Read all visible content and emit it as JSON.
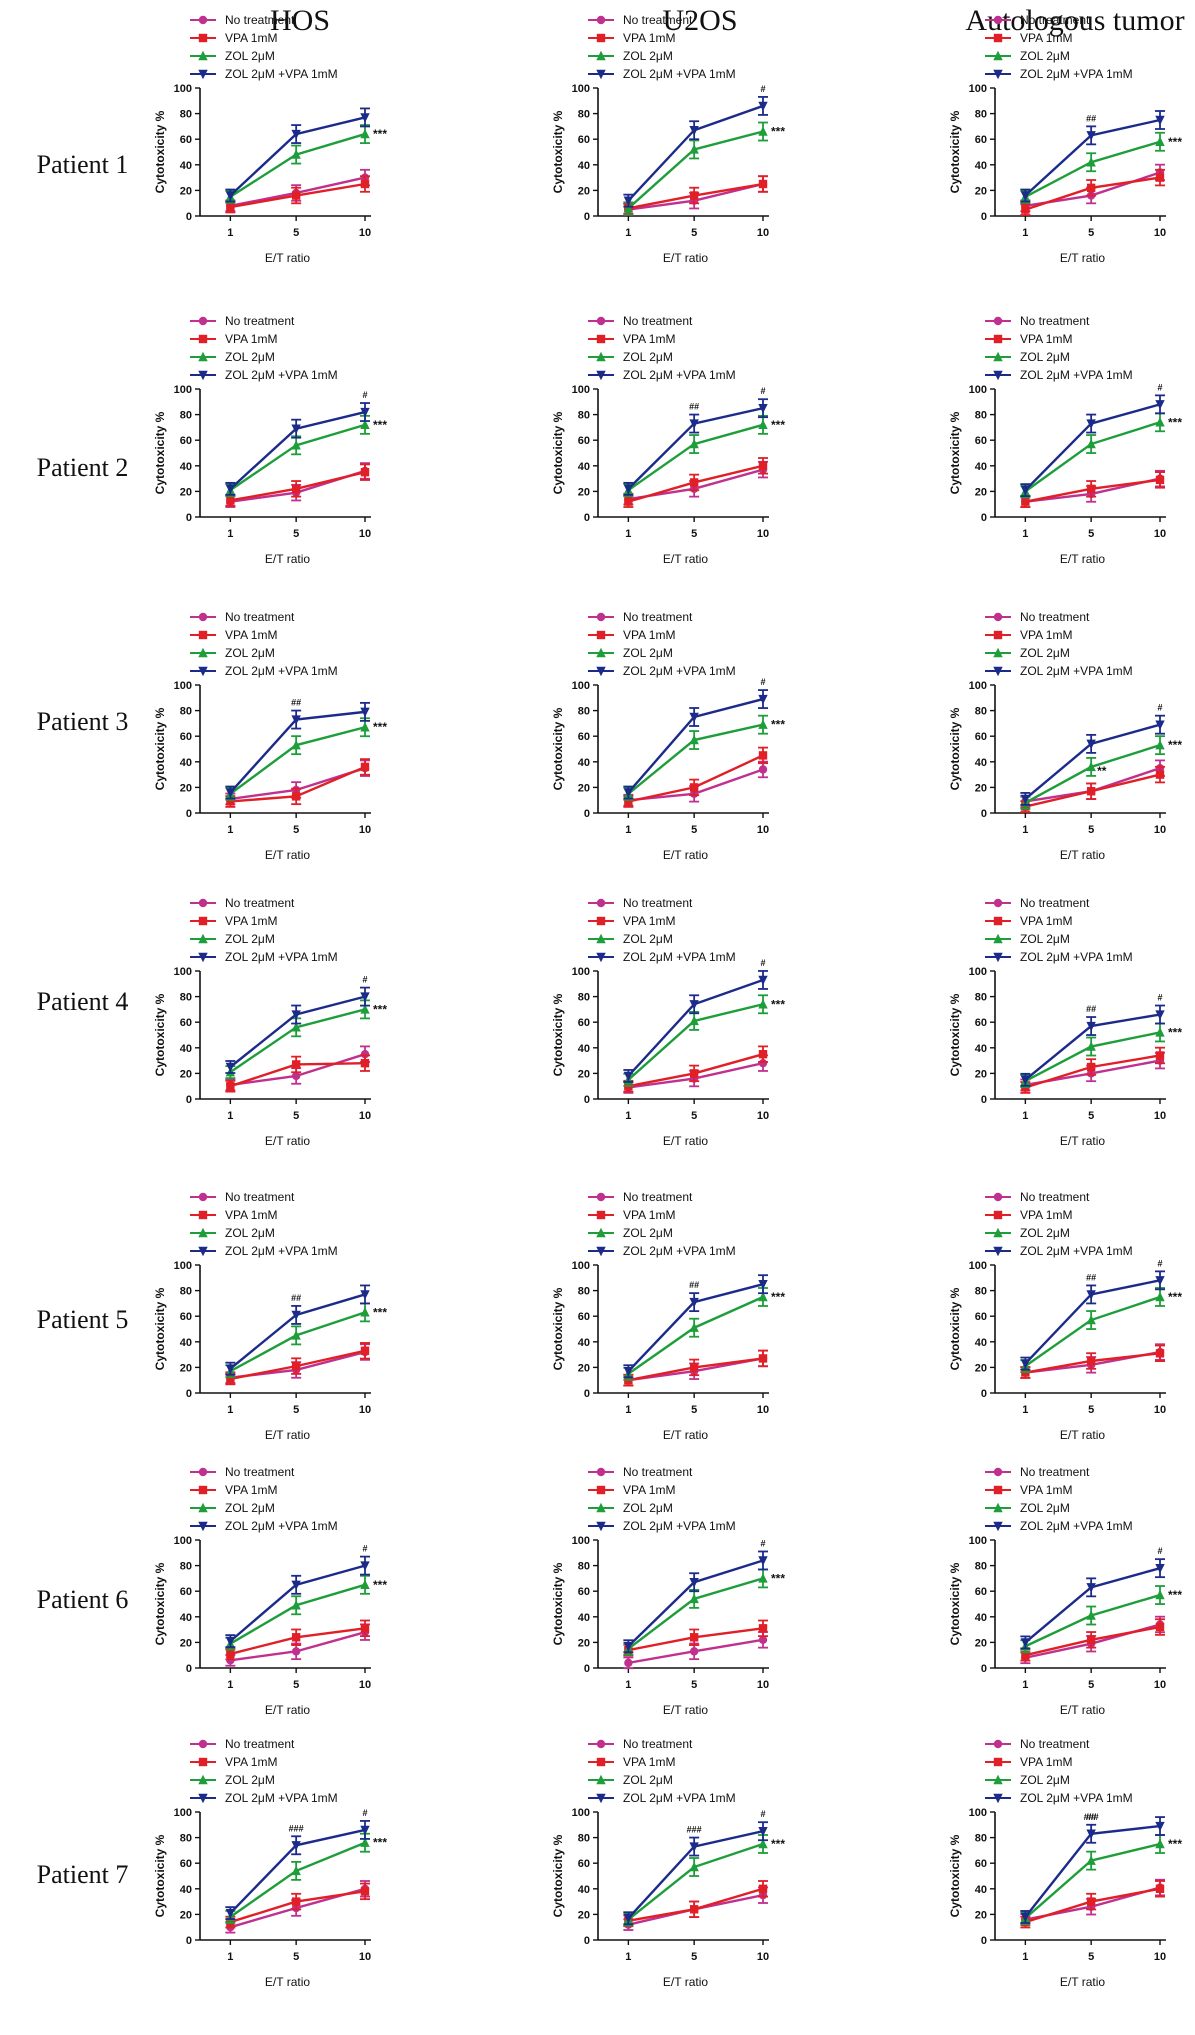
{
  "columns": [
    "HOS",
    "U2OS",
    "Autologous tumor"
  ],
  "rows": [
    "Patient 1",
    "Patient 2",
    "Patient 3",
    "Patient 4",
    "Patient 5",
    "Patient 6",
    "Patient 7"
  ],
  "axis": {
    "xlabel": "E/T ratio",
    "ylabel": "Cytotoxicity %",
    "xticks": [
      "1",
      "5",
      "10"
    ],
    "yticks": [
      "0",
      "20",
      "40",
      "60",
      "80",
      "100"
    ],
    "ylim": [
      0,
      100
    ]
  },
  "legend": [
    "No treatment",
    "VPA 1mM",
    "ZOL 2μM",
    "ZOL 2μM +VPA 1mM"
  ],
  "colors": {
    "no_treatment": "#c0308e",
    "vpa": "#e01f26",
    "zol": "#1e9e3a",
    "combo": "#1c2b8a",
    "axis": "#111111"
  },
  "chart_data": [
    {
      "type": "line",
      "title": "HOS – Patient 1",
      "x": [
        1,
        5,
        10
      ],
      "series": [
        {
          "name": "No treatment",
          "values": [
            8,
            18,
            30
          ]
        },
        {
          "name": "VPA 1mM",
          "values": [
            7,
            16,
            25
          ]
        },
        {
          "name": "ZOL 2μM",
          "values": [
            15,
            48,
            64
          ]
        },
        {
          "name": "ZOL 2μM +VPA 1mM",
          "values": [
            16,
            64,
            77
          ]
        }
      ],
      "annotations": [
        "***"
      ]
    },
    {
      "type": "line",
      "title": "U2OS – Patient 1",
      "x": [
        1,
        5,
        10
      ],
      "series": [
        {
          "name": "No treatment",
          "values": [
            5,
            12,
            25
          ]
        },
        {
          "name": "VPA 1mM",
          "values": [
            6,
            16,
            25
          ]
        },
        {
          "name": "ZOL 2μM",
          "values": [
            6,
            52,
            66
          ]
        },
        {
          "name": "ZOL 2μM +VPA 1mM",
          "values": [
            12,
            67,
            86
          ]
        }
      ],
      "annotations": [
        "#",
        "***"
      ]
    },
    {
      "type": "line",
      "title": "Autologous tumor – Patient 1",
      "x": [
        1,
        5,
        10
      ],
      "series": [
        {
          "name": "No treatment",
          "values": [
            8,
            16,
            34
          ]
        },
        {
          "name": "VPA 1mM",
          "values": [
            5,
            22,
            30
          ]
        },
        {
          "name": "ZOL 2μM",
          "values": [
            15,
            42,
            58
          ]
        },
        {
          "name": "ZOL 2μM +VPA 1mM",
          "values": [
            16,
            63,
            75
          ]
        }
      ],
      "annotations": [
        "##",
        "***"
      ]
    },
    {
      "type": "line",
      "title": "HOS – Patient 2",
      "x": [
        1,
        5,
        10
      ],
      "series": [
        {
          "name": "No treatment",
          "values": [
            12,
            19,
            36
          ]
        },
        {
          "name": "VPA 1mM",
          "values": [
            13,
            22,
            35
          ]
        },
        {
          "name": "ZOL 2μM",
          "values": [
            21,
            56,
            72
          ]
        },
        {
          "name": "ZOL 2μM +VPA 1mM",
          "values": [
            22,
            69,
            82
          ]
        }
      ],
      "annotations": [
        "#",
        "***"
      ]
    },
    {
      "type": "line",
      "title": "U2OS – Patient 2",
      "x": [
        1,
        5,
        10
      ],
      "series": [
        {
          "name": "No treatment",
          "values": [
            14,
            22,
            37
          ]
        },
        {
          "name": "VPA 1mM",
          "values": [
            12,
            27,
            40
          ]
        },
        {
          "name": "ZOL 2μM",
          "values": [
            21,
            57,
            72
          ]
        },
        {
          "name": "ZOL 2μM +VPA 1mM",
          "values": [
            22,
            73,
            85
          ]
        }
      ],
      "annotations": [
        "##",
        "#",
        "***"
      ]
    },
    {
      "type": "line",
      "title": "Autologous tumor – Patient 2",
      "x": [
        1,
        5,
        10
      ],
      "series": [
        {
          "name": "No treatment",
          "values": [
            12,
            18,
            30
          ]
        },
        {
          "name": "VPA 1mM",
          "values": [
            12,
            22,
            29
          ]
        },
        {
          "name": "ZOL 2μM",
          "values": [
            20,
            57,
            74
          ]
        },
        {
          "name": "ZOL 2μM +VPA 1mM",
          "values": [
            21,
            73,
            88
          ]
        }
      ],
      "annotations": [
        "#",
        "***"
      ]
    },
    {
      "type": "line",
      "title": "HOS – Patient 3",
      "x": [
        1,
        5,
        10
      ],
      "series": [
        {
          "name": "No treatment",
          "values": [
            11,
            18,
            35
          ]
        },
        {
          "name": "VPA 1mM",
          "values": [
            9,
            13,
            36
          ]
        },
        {
          "name": "ZOL 2μM",
          "values": [
            15,
            53,
            67
          ]
        },
        {
          "name": "ZOL 2μM +VPA 1mM",
          "values": [
            16,
            73,
            79
          ]
        }
      ],
      "annotations": [
        "##",
        "***"
      ]
    },
    {
      "type": "line",
      "title": "U2OS – Patient 3",
      "x": [
        1,
        5,
        10
      ],
      "series": [
        {
          "name": "No treatment",
          "values": [
            10,
            15,
            34
          ]
        },
        {
          "name": "VPA 1mM",
          "values": [
            9,
            20,
            45
          ]
        },
        {
          "name": "ZOL 2μM",
          "values": [
            15,
            57,
            69
          ]
        },
        {
          "name": "ZOL 2μM +VPA 1mM",
          "values": [
            16,
            75,
            89
          ]
        }
      ],
      "annotations": [
        "#",
        "***"
      ]
    },
    {
      "type": "line",
      "title": "Autologous tumor – Patient 3",
      "x": [
        1,
        5,
        10
      ],
      "series": [
        {
          "name": "No treatment",
          "values": [
            9,
            17,
            35
          ]
        },
        {
          "name": "VPA 1mM",
          "values": [
            5,
            17,
            30
          ]
        },
        {
          "name": "ZOL 2μM",
          "values": [
            8,
            36,
            53
          ]
        },
        {
          "name": "ZOL 2μM +VPA 1mM",
          "values": [
            11,
            54,
            69
          ]
        }
      ],
      "annotations": [
        "#",
        "**",
        "***"
      ]
    },
    {
      "type": "line",
      "title": "HOS – Patient 4",
      "x": [
        1,
        5,
        10
      ],
      "series": [
        {
          "name": "No treatment",
          "values": [
            11,
            18,
            35
          ]
        },
        {
          "name": "VPA 1mM",
          "values": [
            10,
            27,
            28
          ]
        },
        {
          "name": "ZOL 2μM",
          "values": [
            21,
            56,
            70
          ]
        },
        {
          "name": "ZOL 2μM +VPA 1mM",
          "values": [
            25,
            66,
            80
          ]
        }
      ],
      "annotations": [
        "#",
        "***"
      ]
    },
    {
      "type": "line",
      "title": "U2OS – Patient 4",
      "x": [
        1,
        5,
        10
      ],
      "series": [
        {
          "name": "No treatment",
          "values": [
            9,
            16,
            28
          ]
        },
        {
          "name": "VPA 1mM",
          "values": [
            10,
            20,
            35
          ]
        },
        {
          "name": "ZOL 2μM",
          "values": [
            15,
            61,
            74
          ]
        },
        {
          "name": "ZOL 2μM +VPA 1mM",
          "values": [
            18,
            74,
            93
          ]
        }
      ],
      "annotations": [
        "#",
        "***"
      ]
    },
    {
      "type": "line",
      "title": "Autologous tumor – Patient 4",
      "x": [
        1,
        5,
        10
      ],
      "series": [
        {
          "name": "No treatment",
          "values": [
            11,
            20,
            30
          ]
        },
        {
          "name": "VPA 1mM",
          "values": [
            9,
            25,
            34
          ]
        },
        {
          "name": "ZOL 2μM",
          "values": [
            14,
            41,
            52
          ]
        },
        {
          "name": "ZOL 2μM +VPA 1mM",
          "values": [
            15,
            57,
            66
          ]
        }
      ],
      "annotations": [
        "##",
        "#",
        "***"
      ]
    },
    {
      "type": "line",
      "title": "HOS – Patient 5",
      "x": [
        1,
        5,
        10
      ],
      "series": [
        {
          "name": "No treatment",
          "values": [
            12,
            18,
            32
          ]
        },
        {
          "name": "VPA 1mM",
          "values": [
            11,
            21,
            33
          ]
        },
        {
          "name": "ZOL 2μM",
          "values": [
            17,
            45,
            63
          ]
        },
        {
          "name": "ZOL 2μM +VPA 1mM",
          "values": [
            19,
            61,
            77
          ]
        }
      ],
      "annotations": [
        "##",
        "***"
      ]
    },
    {
      "type": "line",
      "title": "U2OS – Patient 5",
      "x": [
        1,
        5,
        10
      ],
      "series": [
        {
          "name": "No treatment",
          "values": [
            10,
            17,
            27
          ]
        },
        {
          "name": "VPA 1mM",
          "values": [
            10,
            20,
            27
          ]
        },
        {
          "name": "ZOL 2μM",
          "values": [
            15,
            51,
            75
          ]
        },
        {
          "name": "ZOL 2μM +VPA 1mM",
          "values": [
            17,
            71,
            85
          ]
        }
      ],
      "annotations": [
        "##",
        "***"
      ]
    },
    {
      "type": "line",
      "title": "Autologous tumor – Patient 5",
      "x": [
        1,
        5,
        10
      ],
      "series": [
        {
          "name": "No treatment",
          "values": [
            16,
            22,
            32
          ]
        },
        {
          "name": "VPA 1mM",
          "values": [
            16,
            25,
            31
          ]
        },
        {
          "name": "ZOL 2μM",
          "values": [
            21,
            57,
            75
          ]
        },
        {
          "name": "ZOL 2μM +VPA 1mM",
          "values": [
            23,
            77,
            88
          ]
        }
      ],
      "annotations": [
        "##",
        "#",
        "***"
      ]
    },
    {
      "type": "line",
      "title": "HOS – Patient 6",
      "x": [
        1,
        5,
        10
      ],
      "series": [
        {
          "name": "No treatment",
          "values": [
            6,
            13,
            28
          ]
        },
        {
          "name": "VPA 1mM",
          "values": [
            11,
            24,
            31
          ]
        },
        {
          "name": "ZOL 2μM",
          "values": [
            19,
            49,
            65
          ]
        },
        {
          "name": "ZOL 2μM +VPA 1mM",
          "values": [
            21,
            65,
            80
          ]
        }
      ],
      "annotations": [
        "#",
        "***"
      ]
    },
    {
      "type": "line",
      "title": "U2OS – Patient 6",
      "x": [
        1,
        5,
        10
      ],
      "series": [
        {
          "name": "No treatment",
          "values": [
            4,
            13,
            22
          ]
        },
        {
          "name": "VPA 1mM",
          "values": [
            14,
            24,
            31
          ]
        },
        {
          "name": "ZOL 2μM",
          "values": [
            15,
            54,
            70
          ]
        },
        {
          "name": "ZOL 2μM +VPA 1mM",
          "values": [
            17,
            67,
            84
          ]
        }
      ],
      "annotations": [
        "#",
        "***"
      ]
    },
    {
      "type": "line",
      "title": "Autologous tumor – Patient 6",
      "x": [
        1,
        5,
        10
      ],
      "series": [
        {
          "name": "No treatment",
          "values": [
            8,
            19,
            34
          ]
        },
        {
          "name": "VPA 1mM",
          "values": [
            10,
            22,
            32
          ]
        },
        {
          "name": "ZOL 2μM",
          "values": [
            17,
            41,
            57
          ]
        },
        {
          "name": "ZOL 2μM +VPA 1mM",
          "values": [
            20,
            63,
            78
          ]
        }
      ],
      "annotations": [
        "#",
        "***"
      ]
    },
    {
      "type": "line",
      "title": "HOS – Patient 7",
      "x": [
        1,
        5,
        10
      ],
      "series": [
        {
          "name": "No treatment",
          "values": [
            10,
            25,
            40
          ]
        },
        {
          "name": "VPA 1mM",
          "values": [
            14,
            30,
            38
          ]
        },
        {
          "name": "ZOL 2μM",
          "values": [
            18,
            54,
            76
          ]
        },
        {
          "name": "ZOL 2μM +VPA 1mM",
          "values": [
            21,
            74,
            86
          ]
        }
      ],
      "annotations": [
        "###",
        "#",
        "***"
      ]
    },
    {
      "type": "line",
      "title": "U2OS – Patient 7",
      "x": [
        1,
        5,
        10
      ],
      "series": [
        {
          "name": "No treatment",
          "values": [
            12,
            24,
            35
          ]
        },
        {
          "name": "VPA 1mM",
          "values": [
            15,
            24,
            40
          ]
        },
        {
          "name": "ZOL 2μM",
          "values": [
            16,
            57,
            75
          ]
        },
        {
          "name": "ZOL 2μM +VPA 1mM",
          "values": [
            17,
            73,
            85
          ]
        }
      ],
      "annotations": [
        "###",
        "#",
        "***"
      ]
    },
    {
      "type": "line",
      "title": "Autologous tumor – Patient 7",
      "x": [
        1,
        5,
        10
      ],
      "series": [
        {
          "name": "No treatment",
          "values": [
            16,
            26,
            41
          ]
        },
        {
          "name": "VPA 1mM",
          "values": [
            14,
            30,
            40
          ]
        },
        {
          "name": "ZOL 2μM",
          "values": [
            17,
            62,
            75
          ]
        },
        {
          "name": "ZOL 2μM +VPA 1mM",
          "values": [
            18,
            83,
            89
          ]
        }
      ],
      "annotations": [
        "###",
        "##",
        "***"
      ]
    }
  ]
}
